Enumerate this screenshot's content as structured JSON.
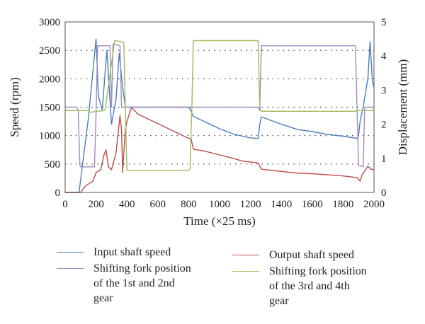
{
  "chart_data": {
    "type": "line",
    "xlabel": "Time (×25 ms)",
    "ylabel": "Speed (rpm)",
    "y2label": "Displacement (mm)",
    "xlim": [
      0,
      2000
    ],
    "ylim": [
      0,
      3000
    ],
    "y2lim": [
      0,
      5
    ],
    "xticks": [
      "0",
      "200",
      "400",
      "600",
      "800",
      "1000",
      "1200",
      "1400",
      "1600",
      "1800",
      "2000"
    ],
    "yticks": [
      "0",
      "500",
      "1000",
      "1500",
      "2000",
      "2500",
      "3000"
    ],
    "y2ticks": [
      "0",
      "1",
      "2",
      "3",
      "4",
      "5"
    ],
    "gridlines": "dotted horizontal",
    "series": [
      {
        "name": "Input shaft speed",
        "axis": "left",
        "color": "#4a7ebb",
        "x": [
          0,
          90,
          150,
          200,
          215,
          240,
          270,
          300,
          330,
          350,
          370,
          390,
          410,
          440,
          470,
          800,
          815,
          830,
          900,
          1000,
          1100,
          1150,
          1200,
          1250,
          1260,
          1270,
          1300,
          1400,
          1500,
          1600,
          1700,
          1800,
          1890,
          1900,
          1910,
          1930,
          1960,
          1975,
          1990,
          2000
        ],
        "y": [
          0,
          0,
          1300,
          2700,
          1700,
          1450,
          2500,
          1200,
          1650,
          2450,
          1900,
          1500,
          1500,
          1500,
          1500,
          1500,
          1430,
          1340,
          1250,
          1120,
          1020,
          990,
          960,
          950,
          1200,
          1330,
          1300,
          1200,
          1110,
          1070,
          1020,
          990,
          950,
          1000,
          1250,
          1500,
          2000,
          2650,
          1950,
          1850
        ]
      },
      {
        "name": "Output shaft speed",
        "axis": "left",
        "color": "#be4b48",
        "x": [
          0,
          100,
          130,
          180,
          200,
          230,
          250,
          265,
          280,
          300,
          330,
          355,
          365,
          372,
          380,
          390,
          400,
          430,
          470,
          800,
          815,
          830,
          900,
          1000,
          1100,
          1150,
          1250,
          1270,
          1300,
          1400,
          1500,
          1600,
          1700,
          1800,
          1890,
          1910,
          1925,
          1960,
          1980,
          2000
        ],
        "y": [
          0,
          0,
          110,
          200,
          350,
          400,
          650,
          750,
          450,
          400,
          700,
          1350,
          1100,
          350,
          700,
          1100,
          1250,
          1500,
          1380,
          950,
          950,
          760,
          730,
          660,
          590,
          550,
          520,
          410,
          400,
          370,
          340,
          330,
          310,
          290,
          260,
          200,
          320,
          460,
          410,
          400
        ]
      },
      {
        "name": "Shifting fork position of the 1st and 2nd gear",
        "axis": "right",
        "color": "#a08cc0",
        "x": [
          0,
          75,
          85,
          95,
          100,
          190,
          200,
          210,
          290,
          300,
          310,
          355,
          365,
          800,
          1250,
          1260,
          1270,
          1880,
          1890,
          1900,
          1930,
          1940,
          2000
        ],
        "y": [
          2.5,
          2.5,
          2.4,
          0.8,
          0.75,
          0.75,
          2.3,
          4.3,
          4.3,
          2.5,
          4.35,
          4.3,
          2.5,
          2.5,
          2.5,
          2.4,
          4.3,
          4.3,
          2.5,
          0.8,
          0.75,
          2.5,
          2.5
        ]
      },
      {
        "name": "Shifting fork position of the 3rd and 4th gear",
        "axis": "right",
        "color": "#9bbb59",
        "x": [
          0,
          150,
          160,
          250,
          260,
          320,
          330,
          380,
          390,
          400,
          800,
          810,
          815,
          820,
          830,
          1250,
          1260,
          1270,
          1880,
          1890,
          2000
        ],
        "y": [
          2.4,
          2.4,
          2.35,
          2.4,
          2.45,
          4.45,
          4.45,
          4.4,
          2.45,
          0.65,
          0.65,
          0.7,
          1.8,
          2.4,
          4.45,
          4.45,
          2.5,
          2.38,
          2.38,
          2.4,
          2.4
        ]
      }
    ]
  },
  "legend": {
    "input_shaft": "Input shaft speed",
    "output_shaft": "Output shaft speed",
    "fork12_line1": "Shifting fork position",
    "fork12_line2": "of the 1st and 2nd",
    "fork12_line3": "gear",
    "fork34_line1": "Shifting fork position",
    "fork34_line2": "of the 3rd and 4th",
    "fork34_line3": "gear"
  },
  "colors": {
    "input_shaft": "#4a7ebb",
    "output_shaft": "#be4b48",
    "fork12": "#a08cc0",
    "fork34": "#9bbb59"
  }
}
